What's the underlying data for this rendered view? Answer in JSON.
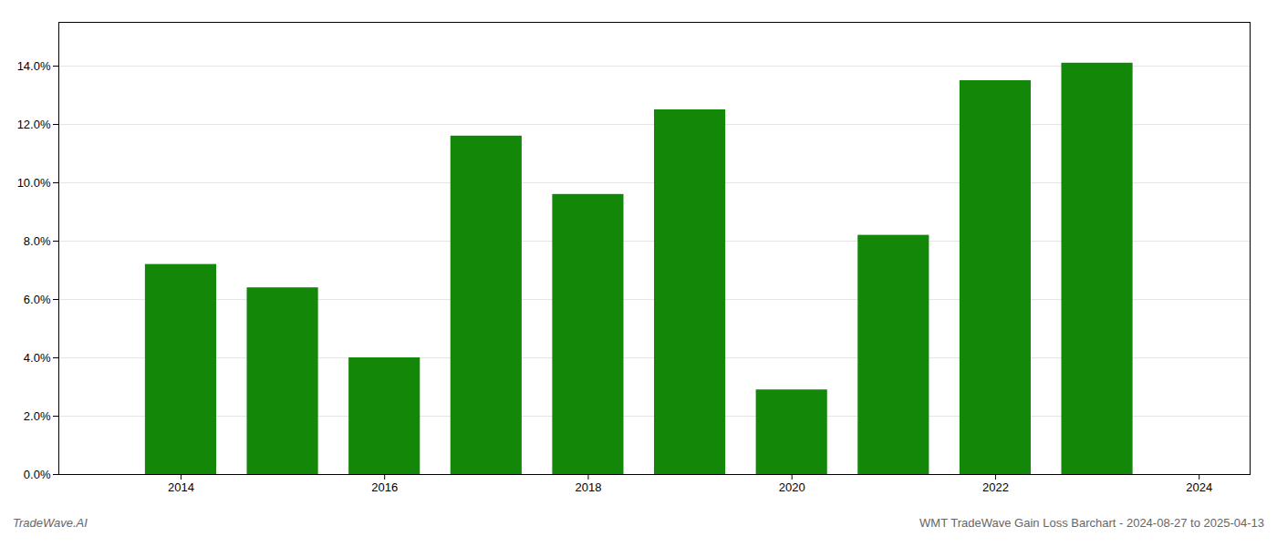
{
  "chart_data": {
    "type": "bar",
    "x": [
      2014,
      2015,
      2016,
      2017,
      2018,
      2019,
      2020,
      2021,
      2022,
      2023
    ],
    "values": [
      0.072,
      0.064,
      0.04,
      0.116,
      0.096,
      0.125,
      0.029,
      0.082,
      0.135,
      0.141
    ],
    "color": "#138808",
    "xlim": [
      2012.8,
      2024.5
    ],
    "xticks": [
      2014,
      2016,
      2018,
      2020,
      2022,
      2024
    ],
    "ylim": [
      0,
      0.155
    ],
    "yticks": [
      {
        "value": 0,
        "label": "0.0%"
      },
      {
        "value": 0.02,
        "label": "2.0%"
      },
      {
        "value": 0.04,
        "label": "4.0%"
      },
      {
        "value": 0.06,
        "label": "6.0%"
      },
      {
        "value": 0.08,
        "label": "8.0%"
      },
      {
        "value": 0.1,
        "label": "10.0%"
      },
      {
        "value": 0.12,
        "label": "12.0%"
      },
      {
        "value": 0.14,
        "label": "14.0%"
      }
    ],
    "grid": true,
    "annotations": [
      "TradeWave.AI",
      "WMT TradeWave Gain Loss Barchart - 2024-08-27 to 2025-04-13"
    ]
  }
}
